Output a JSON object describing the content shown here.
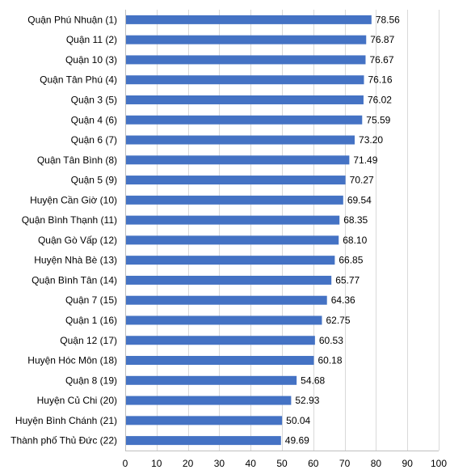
{
  "chart_data": {
    "type": "bar",
    "orientation": "horizontal",
    "title": "",
    "xlabel": "",
    "ylabel": "",
    "categories": [
      "Quận Phú Nhuận (1)",
      "Quận 11 (2)",
      "Quận 10 (3)",
      "Quận Tân Phú (4)",
      "Quận 3 (5)",
      "Quận 4 (6)",
      "Quận 6 (7)",
      "Quận Tân Bình (8)",
      "Quận 5 (9)",
      "Huyện Cần Giờ (10)",
      "Quận Bình Thạnh (11)",
      "Quận Gò Vấp (12)",
      "Huyện Nhà Bè (13)",
      "Quận Bình Tân (14)",
      "Quận 7 (15)",
      "Quận 1 (16)",
      "Quận 12 (17)",
      "Huyện Hóc Môn (18)",
      "Quận 8 (19)",
      "Huyện Củ Chi (20)",
      "Huyện Bình Chánh (21)",
      "Thành phố Thủ Đức (22)"
    ],
    "values": [
      78.56,
      76.87,
      76.67,
      76.16,
      76.02,
      75.59,
      73.2,
      71.49,
      70.27,
      69.54,
      68.35,
      68.1,
      66.85,
      65.77,
      64.36,
      62.75,
      60.53,
      60.18,
      54.68,
      52.93,
      50.04,
      49.69
    ],
    "value_labels": [
      "78.56",
      "76.87",
      "76.67",
      "76.16",
      "76.02",
      "75.59",
      "73.20",
      "71.49",
      "70.27",
      "69.54",
      "68.35",
      "68.10",
      "66.85",
      "65.77",
      "64.36",
      "62.75",
      "60.53",
      "60.18",
      "54.68",
      "52.93",
      "50.04",
      "49.69"
    ],
    "xlim": [
      0,
      100
    ],
    "xticks": [
      0,
      10,
      20,
      30,
      40,
      50,
      60,
      70,
      80,
      90,
      100
    ],
    "grid": true,
    "bar_color": "#4472C4",
    "grid_color": "#D9D9D9"
  }
}
